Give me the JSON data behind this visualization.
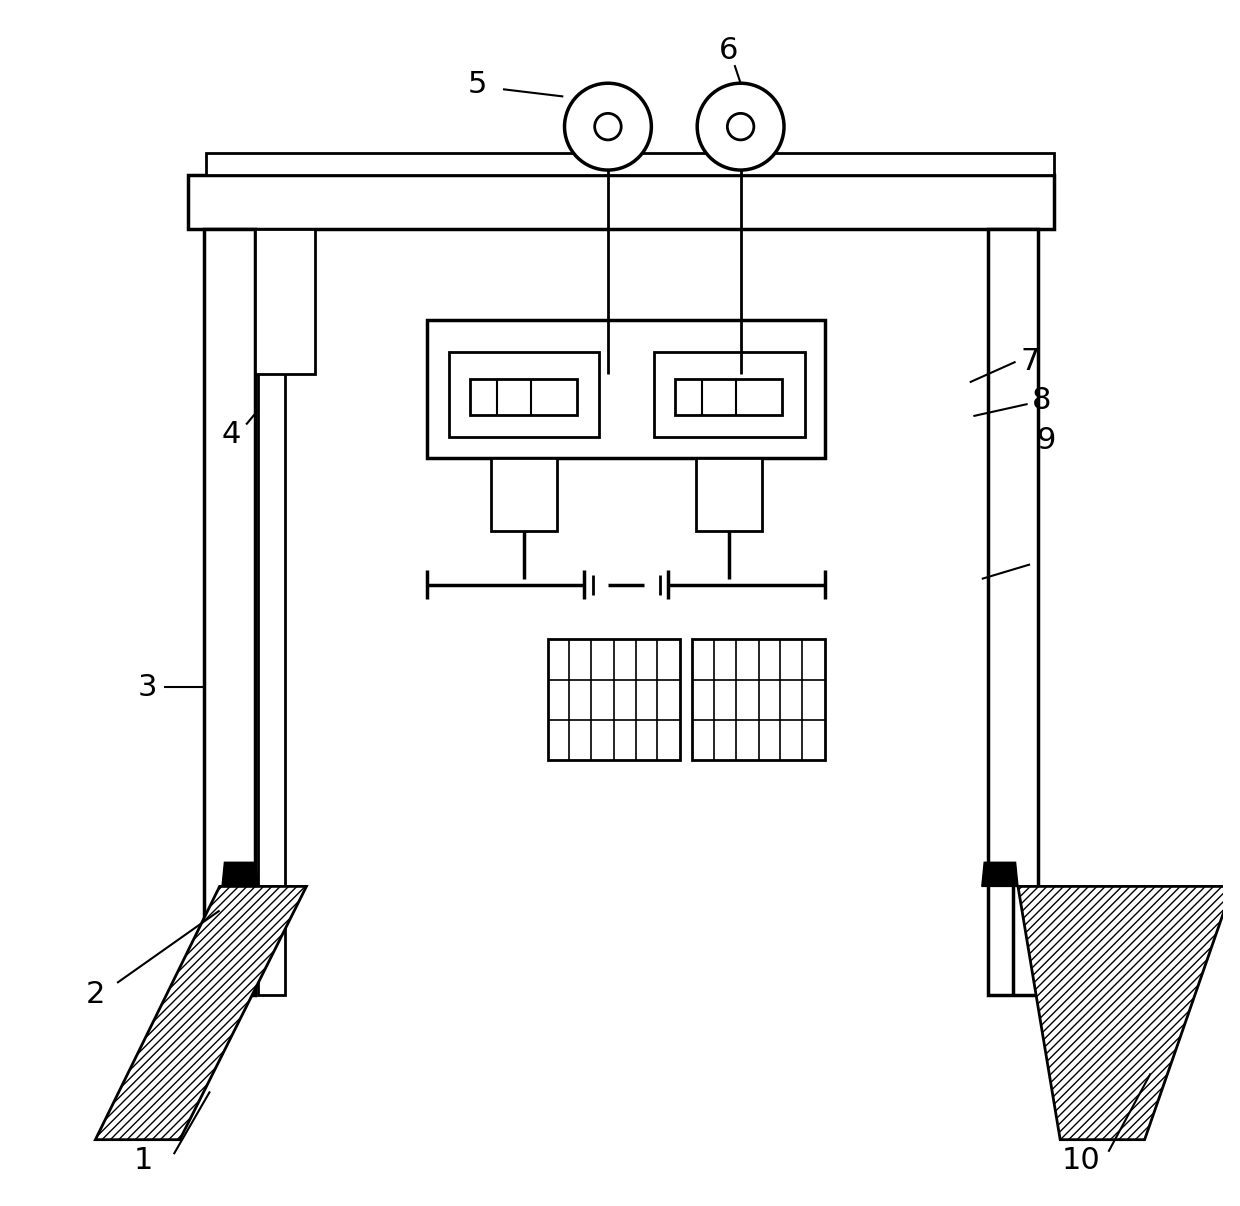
{
  "bg_color": "#ffffff",
  "line_color": "#000000",
  "fig_width": 12.4,
  "fig_height": 12.06,
  "lw": 2.0,
  "lw_thick": 2.5,
  "lw_thin": 1.5
}
